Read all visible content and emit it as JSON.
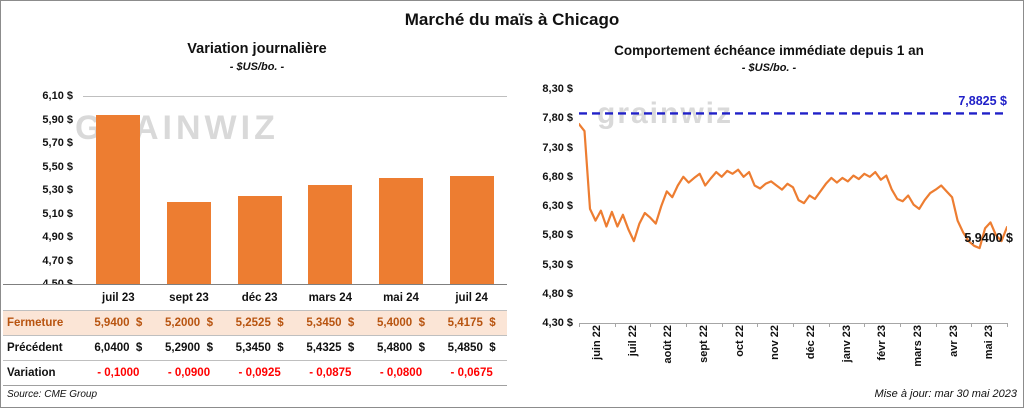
{
  "page": {
    "title": "Marché du maïs à Chicago",
    "source": "Source: CME Group",
    "updated": "Mise à jour: mar 30 mai 2023",
    "watermark_left": "GRAINWIZ",
    "watermark_right": "grainwiz"
  },
  "chart_data": [
    {
      "type": "bar",
      "title": "Variation journalière",
      "subtitle": "- $US/bo. -",
      "categories": [
        "juil 23",
        "sept 23",
        "déc 23",
        "mars 24",
        "mai 24",
        "juil 24"
      ],
      "values": [
        5.94,
        5.2,
        5.2525,
        5.345,
        5.4,
        5.4175
      ],
      "ylim": [
        4.5,
        6.1
      ],
      "yticks": [
        "6,10 $",
        "5,90 $",
        "5,70 $",
        "5,50 $",
        "5,30 $",
        "5,10 $",
        "4,90 $",
        "4,70 $",
        "4,50 $"
      ],
      "bar_color": "#ED7D31",
      "grid": false,
      "table": {
        "highlight_bg": "#FBE5D6",
        "highlight_text": "#B85410",
        "negative_text": "#FF0000",
        "rows": [
          {
            "label": "Fermeture",
            "style": "highlight",
            "values": [
              "5,9400  $",
              "5,2000  $",
              "5,2525  $",
              "5,3450  $",
              "5,4000  $",
              "5,4175  $"
            ]
          },
          {
            "label": "Précédent",
            "style": "normal",
            "values": [
              "6,0400  $",
              "5,2900  $",
              "5,3450  $",
              "5,4325  $",
              "5,4800  $",
              "5,4850  $"
            ]
          },
          {
            "label": "Variation",
            "style": "negative",
            "values": [
              "- 0,1000",
              "- 0,0900",
              "- 0,0925",
              "- 0,0875",
              "- 0,0800",
              "- 0,0675"
            ]
          }
        ]
      }
    },
    {
      "type": "line",
      "title": "Comportement échéance immédiate depuis 1 an",
      "subtitle": "- $US/bo. -",
      "x_labels": [
        "juin 22",
        "juil 22",
        "août 22",
        "sept 22",
        "oct 22",
        "nov 22",
        "déc 22",
        "janv 23",
        "févr 23",
        "mars 23",
        "avr 23",
        "mai 23"
      ],
      "ylim": [
        4.3,
        8.3
      ],
      "yticks": [
        "8,30 $",
        "7,80 $",
        "7,30 $",
        "6,80 $",
        "6,30 $",
        "5,80 $",
        "5,30 $",
        "4,80 $",
        "4,30 $"
      ],
      "line_color": "#ED7D31",
      "grid": false,
      "legend": "none",
      "series": [
        {
          "name": "échéance immédiate",
          "values": [
            7.7,
            7.58,
            6.25,
            6.05,
            6.22,
            5.95,
            6.2,
            5.95,
            6.15,
            5.9,
            5.7,
            6.0,
            6.18,
            6.1,
            6.0,
            6.3,
            6.55,
            6.45,
            6.65,
            6.8,
            6.7,
            6.78,
            6.85,
            6.65,
            6.77,
            6.88,
            6.8,
            6.9,
            6.85,
            6.92,
            6.8,
            6.88,
            6.65,
            6.6,
            6.68,
            6.72,
            6.65,
            6.58,
            6.68,
            6.62,
            6.4,
            6.35,
            6.48,
            6.42,
            6.55,
            6.68,
            6.78,
            6.7,
            6.78,
            6.72,
            6.82,
            6.76,
            6.85,
            6.8,
            6.88,
            6.75,
            6.82,
            6.58,
            6.42,
            6.38,
            6.48,
            6.32,
            6.25,
            6.4,
            6.52,
            6.58,
            6.65,
            6.55,
            6.45,
            6.05,
            5.85,
            5.7,
            5.62,
            5.58,
            5.92,
            6.02,
            5.8,
            5.7,
            5.94
          ]
        }
      ],
      "reference_line": {
        "value": 7.8825,
        "label": "7,8825 $",
        "color": "#2020C8",
        "style": "dashed"
      },
      "end_label": "5,9400 $"
    }
  ]
}
